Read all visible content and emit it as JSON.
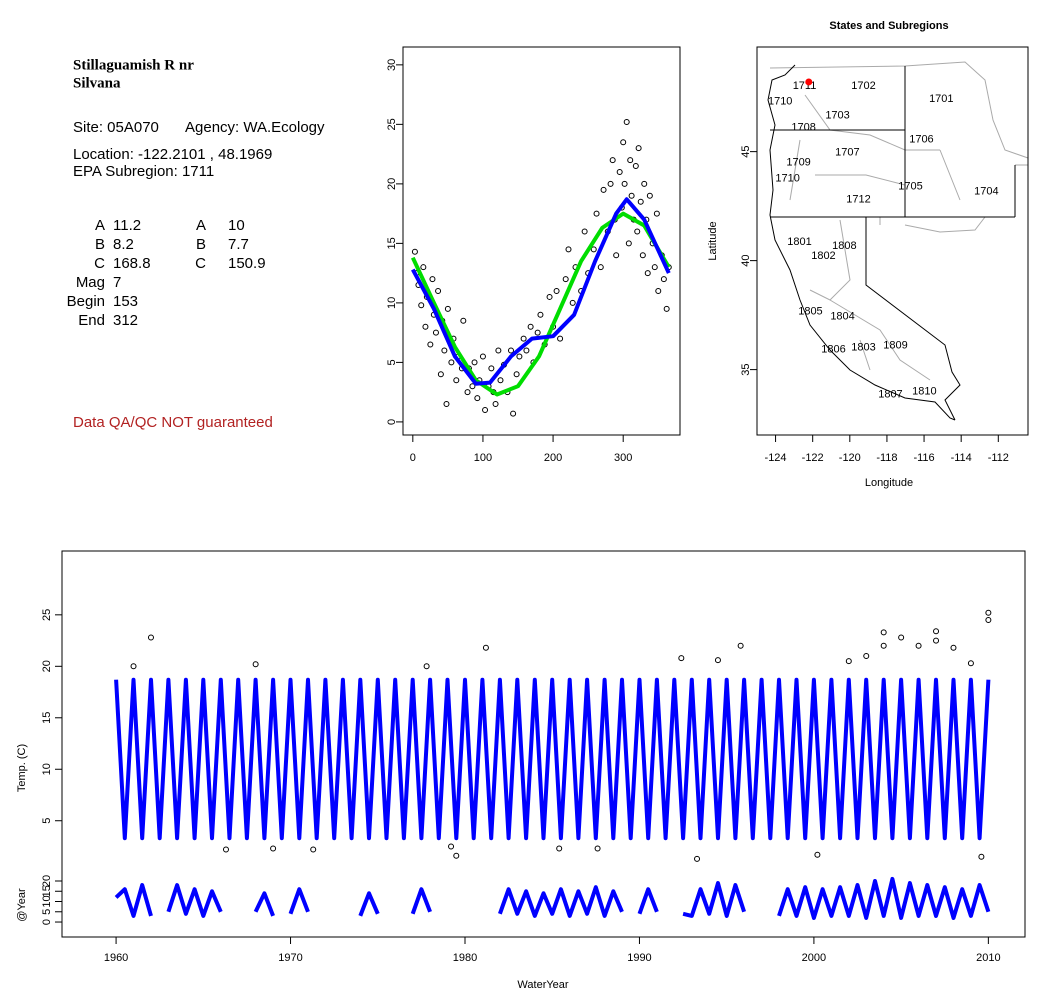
{
  "info": {
    "title": [
      "Stillaguamish R nr",
      "Silvana"
    ],
    "site": "Site: 05A070",
    "agency": "Agency: WA.Ecology",
    "location": "Location: -122.2101 , 48.1969",
    "subregion": "EPA Subregion: 1711",
    "params": [
      [
        "A",
        11.2,
        "A",
        10
      ],
      [
        "B",
        8.2,
        "B",
        7.7
      ],
      [
        "C",
        168.8,
        "C",
        150.9
      ],
      [
        "Mag",
        7
      ],
      [
        "Begin",
        153
      ],
      [
        "End",
        312
      ]
    ],
    "note": "Data QA/QC NOT guaranteed"
  },
  "chart_data": [
    {
      "type": "scatter",
      "xlim": [
        -14,
        381
      ],
      "ylim": [
        -1.1,
        31.5
      ],
      "xticks": [
        0,
        100,
        200,
        300
      ],
      "yticks": [
        0,
        5,
        10,
        15,
        20,
        25,
        30
      ],
      "point_color": "#000000",
      "x": [
        3,
        5,
        8,
        12,
        15,
        18,
        20,
        25,
        28,
        30,
        33,
        36,
        40,
        42,
        45,
        48,
        50,
        55,
        58,
        62,
        65,
        70,
        72,
        78,
        80,
        85,
        88,
        92,
        95,
        100,
        103,
        108,
        112,
        115,
        118,
        122,
        125,
        130,
        135,
        140,
        143,
        148,
        152,
        158,
        162,
        168,
        172,
        178,
        182,
        188,
        195,
        200,
        205,
        210,
        218,
        222,
        228,
        232,
        240,
        245,
        250,
        258,
        262,
        268,
        272,
        278,
        282,
        285,
        288,
        290,
        295,
        298,
        300,
        302,
        305,
        308,
        310,
        312,
        315,
        318,
        320,
        322,
        325,
        328,
        330,
        333,
        335,
        338,
        342,
        345,
        348,
        350,
        355,
        358,
        362,
        365
      ],
      "values": [
        14.3,
        12.5,
        11.5,
        9.8,
        13,
        8,
        10.5,
        6.5,
        12,
        9,
        7.5,
        11,
        4,
        8.5,
        6,
        1.5,
        9.5,
        5,
        7,
        3.5,
        5.5,
        4.5,
        8.5,
        2.5,
        4.5,
        3,
        5,
        2,
        3.5,
        5.5,
        1,
        3,
        4.5,
        2.5,
        1.5,
        6,
        3.5,
        4.8,
        2.5,
        6,
        0.7,
        4,
        5.5,
        7,
        6,
        8,
        5,
        7.5,
        9,
        6.5,
        10.5,
        8,
        11,
        7,
        12,
        14.5,
        10,
        13,
        11,
        16,
        12.5,
        14.5,
        17.5,
        13,
        19.5,
        16,
        20,
        22,
        17,
        14,
        21,
        18,
        23.5,
        20,
        25.2,
        15,
        22,
        19,
        17,
        21.5,
        16,
        23,
        18.5,
        14,
        20,
        17,
        12.5,
        19,
        15,
        13,
        17.5,
        11,
        14,
        12,
        9.5,
        13
      ],
      "lines": [
        {
          "color": "#00dd00",
          "x": [
            0,
            30,
            60,
            90,
            120,
            150,
            180,
            210,
            240,
            270,
            300,
            330,
            365
          ],
          "values": [
            13.8,
            10,
            6.3,
            3.5,
            2.3,
            3,
            5.5,
            9.5,
            13.5,
            16.3,
            17.5,
            16.5,
            13
          ]
        },
        {
          "color": "#0000ff",
          "x": [
            0,
            30,
            60,
            90,
            110,
            140,
            170,
            200,
            230,
            260,
            290,
            305,
            330,
            365
          ],
          "values": [
            12.8,
            9.5,
            5.5,
            3.2,
            3.3,
            5.5,
            7,
            7.2,
            9,
            13.5,
            17.5,
            18.7,
            17,
            12.5
          ]
        }
      ]
    },
    {
      "type": "map",
      "title": "States and Subregions",
      "xlabel": "Longitude",
      "ylabel": "Latitude",
      "xlim": [
        -125.0,
        -110.4
      ],
      "ylim": [
        32.0,
        49.8
      ],
      "xticks": [
        -124,
        -122,
        -120,
        -118,
        -116,
        -114,
        -112
      ],
      "yticks": [
        35,
        40,
        45
      ],
      "site": {
        "lon": -122.2101,
        "lat": 48.1969,
        "color": "#ff0000"
      },
      "regions": [
        {
          "label": "1702",
          "lon": -119.26,
          "lat": 48.0
        },
        {
          "label": "1701",
          "lon": -115.07,
          "lat": 47.4
        },
        {
          "label": "1711",
          "lon": -122.44,
          "lat": 48.0
        },
        {
          "label": "1710",
          "lon": -123.75,
          "lat": 47.3
        },
        {
          "label": "1703",
          "lon": -120.66,
          "lat": 46.66
        },
        {
          "label": "1708",
          "lon": -122.49,
          "lat": 46.1
        },
        {
          "label": "1706",
          "lon": -116.14,
          "lat": 45.55
        },
        {
          "label": "1707",
          "lon": -120.13,
          "lat": 44.95
        },
        {
          "label": "1709",
          "lon": -122.76,
          "lat": 44.5
        },
        {
          "label": "1710",
          "lon": -123.35,
          "lat": 43.76
        },
        {
          "label": "1705",
          "lon": -116.73,
          "lat": 43.39
        },
        {
          "label": "1704",
          "lon": -112.64,
          "lat": 43.16
        },
        {
          "label": "1712",
          "lon": -119.53,
          "lat": 42.79
        },
        {
          "label": "1801",
          "lon": -122.71,
          "lat": 40.85
        },
        {
          "label": "1808",
          "lon": -120.29,
          "lat": 40.67
        },
        {
          "label": "1802",
          "lon": -121.42,
          "lat": 40.2
        },
        {
          "label": "1805",
          "lon": -122.12,
          "lat": 37.67
        },
        {
          "label": "1804",
          "lon": -120.39,
          "lat": 37.44
        },
        {
          "label": "1809",
          "lon": -117.54,
          "lat": 36.1
        },
        {
          "label": "1803",
          "lon": -119.26,
          "lat": 36.0
        },
        {
          "label": "1806",
          "lon": -120.88,
          "lat": 35.92
        },
        {
          "label": "1810",
          "lon": -115.98,
          "lat": 34.0
        },
        {
          "label": "1807",
          "lon": -117.81,
          "lat": 33.85
        }
      ]
    },
    {
      "type": "line",
      "ylabel": "Temp. (C)",
      "xlim": [
        1956.9,
        2012.1
      ],
      "ylim": [
        0.7,
        31.2
      ],
      "yticks": [
        5,
        10,
        15,
        20,
        25
      ],
      "series": [
        {
          "color": "#0000ff",
          "x": [
            1960,
            1960.5,
            1961,
            1961.5,
            1962,
            1962.5,
            1963,
            1963.5,
            1964,
            1964.5,
            1965,
            1965.5,
            1966,
            1966.5,
            1967,
            1967.5,
            1968,
            1968.5,
            1969,
            1969.5,
            1970,
            1970.5,
            1971,
            1971.5,
            1972,
            1972.5,
            1973,
            1973.5,
            1974,
            1974.5,
            1975,
            1975.5,
            1976,
            1976.5,
            1977,
            1977.5,
            1978,
            1978.5,
            1979,
            1979.5,
            1980,
            1980.5,
            1981,
            1981.5,
            1982,
            1982.5,
            1983,
            1983.5,
            1984,
            1984.5,
            1985,
            1985.5,
            1986,
            1986.5,
            1987,
            1987.5,
            1988,
            1988.5,
            1989,
            1989.5,
            1990,
            1990.5,
            1991,
            1991.5,
            1992,
            1992.5,
            1993,
            1993.5,
            1994,
            1994.5,
            1995,
            1995.5,
            1996,
            1996.5,
            1997,
            1997.5,
            1998,
            1998.5,
            1999,
            1999.5,
            2000,
            2000.5,
            2001,
            2001.5,
            2002,
            2002.5,
            2003,
            2003.5,
            2004,
            2004.5,
            2005,
            2005.5,
            2006,
            2006.5,
            2007,
            2007.5,
            2008,
            2008.5,
            2009,
            2009.5,
            2010
          ],
          "values": [
            18.7,
            3.3,
            18.7,
            3.3,
            18.7,
            3.3,
            18.7,
            3.3,
            18.7,
            3.3,
            18.7,
            3.3,
            18.7,
            3.3,
            18.7,
            3.3,
            18.7,
            3.3,
            18.7,
            3.3,
            18.7,
            3.3,
            18.7,
            3.3,
            18.7,
            3.3,
            18.7,
            3.3,
            18.7,
            3.3,
            18.7,
            3.3,
            18.7,
            3.3,
            18.7,
            3.3,
            18.7,
            3.3,
            18.7,
            3.3,
            18.7,
            3.3,
            18.7,
            3.3,
            18.7,
            3.3,
            18.7,
            3.3,
            18.7,
            3.3,
            18.7,
            3.3,
            18.7,
            3.3,
            18.7,
            3.3,
            18.7,
            3.3,
            18.7,
            3.3,
            18.7,
            3.3,
            18.7,
            3.3,
            18.7,
            3.3,
            18.7,
            3.3,
            18.7,
            3.3,
            18.7,
            3.3,
            18.7,
            3.3,
            18.7,
            3.3,
            18.7,
            3.3,
            18.7,
            3.3,
            18.7,
            3.3,
            18.7,
            3.3,
            18.7,
            3.3,
            18.7,
            3.3,
            18.7,
            3.3,
            18.7,
            3.3,
            18.7,
            3.3,
            18.7,
            3.3,
            18.7,
            3.3,
            18.7,
            3.3,
            18.7
          ]
        }
      ],
      "points": {
        "color": "#000000",
        "x": [
          1962,
          1961,
          1968,
          1977.8,
          1981.2,
          1992.4,
          1994.5,
          1995.8,
          1966.3,
          1969,
          1971.3,
          1979.2,
          1979.5,
          1985.4,
          1987.6,
          1993.3,
          2000.2,
          2009.6,
          2002,
          2003,
          2004,
          2005,
          2006,
          2007,
          2008,
          2009,
          2010,
          2010,
          2004,
          2007
        ],
        "values": [
          22.8,
          20,
          20.2,
          20,
          21.8,
          20.8,
          20.6,
          22,
          2.2,
          2.3,
          2.2,
          2.5,
          1.6,
          2.3,
          2.3,
          1.3,
          1.7,
          1.5,
          20.5,
          21,
          23.3,
          22.8,
          22,
          23.4,
          21.8,
          20.3,
          25.2,
          24.5,
          22,
          22.5
        ]
      }
    },
    {
      "type": "line",
      "ylabel": "@Year",
      "xlabel": "WaterYear",
      "xlim": [
        1956.9,
        2012.1
      ],
      "ylim": [
        -7.3,
        27.8
      ],
      "yticks": [
        0,
        5,
        10,
        15,
        20
      ],
      "xticks": [
        1960,
        1970,
        1980,
        1990,
        2000,
        2010
      ],
      "series": [
        {
          "color": "#0000ff",
          "x": [
            1960,
            1960.5,
            1961,
            1961.5,
            1962,
            1962.5,
            1963,
            1963.5,
            1964,
            1964.5,
            1965,
            1965.5,
            1966,
            1967,
            1968,
            1968.5,
            1969,
            1969.5,
            1970,
            1970.5,
            1971,
            1972,
            1974,
            1974.5,
            1975,
            1976,
            1977,
            1977.5,
            1978,
            1980,
            1982,
            1982.5,
            1983,
            1983.5,
            1984,
            1984.5,
            1985,
            1985.5,
            1986,
            1986.5,
            1987,
            1987.5,
            1988,
            1988.5,
            1989,
            1989.5,
            1990,
            1990.5,
            1991,
            1991.5,
            1992.5,
            1993,
            1993.5,
            1994,
            1994.5,
            1995,
            1995.5,
            1996,
            1997,
            1998,
            1998.5,
            1999,
            1999.5,
            2000,
            2000.5,
            2001,
            2001.5,
            2002,
            2002.5,
            2003,
            2003.5,
            2004,
            2004.5,
            2005,
            2005.5,
            2006,
            2006.5,
            2007,
            2007.5,
            2008,
            2008.5,
            2009,
            2009.5,
            2010
          ],
          "values": [
            12,
            16,
            3,
            18,
            3,
            null,
            5,
            18,
            4,
            16,
            3,
            15,
            5,
            null,
            5,
            14,
            3,
            null,
            4,
            16,
            5,
            null,
            3,
            14,
            4,
            null,
            4,
            16,
            5,
            null,
            4,
            16,
            4,
            15,
            3,
            14,
            4,
            16,
            3,
            15,
            4,
            17,
            3,
            15,
            5,
            null,
            4,
            16,
            5,
            null,
            4,
            3,
            16,
            4,
            19,
            3,
            18,
            5,
            null,
            3,
            16,
            3,
            17,
            2,
            16,
            3,
            17,
            3,
            18,
            2,
            20,
            3,
            21,
            2,
            19,
            3,
            18,
            3,
            17,
            2,
            16,
            3,
            18,
            5
          ]
        }
      ]
    }
  ]
}
